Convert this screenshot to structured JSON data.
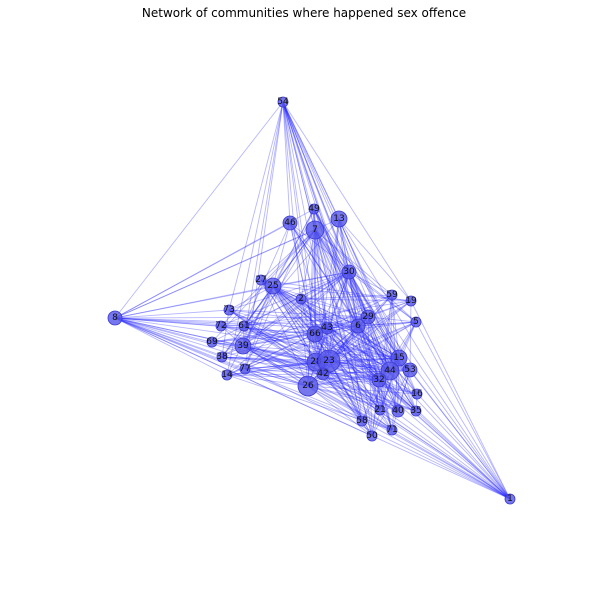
{
  "title": "Network of communities where happened sex offence",
  "colors": {
    "node": "#5555e8",
    "edge": "#2020ff"
  },
  "nodes": [
    {
      "id": "54"
    },
    {
      "id": "49"
    },
    {
      "id": "13"
    },
    {
      "id": "46"
    },
    {
      "id": "7"
    },
    {
      "id": "30"
    },
    {
      "id": "27"
    },
    {
      "id": "25"
    },
    {
      "id": "2"
    },
    {
      "id": "59"
    },
    {
      "id": "19"
    },
    {
      "id": "8"
    },
    {
      "id": "73"
    },
    {
      "id": "29"
    },
    {
      "id": "6"
    },
    {
      "id": "5"
    },
    {
      "id": "72"
    },
    {
      "id": "61"
    },
    {
      "id": "43"
    },
    {
      "id": "66"
    },
    {
      "id": "69"
    },
    {
      "id": "39"
    },
    {
      "id": "38"
    },
    {
      "id": "77"
    },
    {
      "id": "14"
    },
    {
      "id": "28"
    },
    {
      "id": "23"
    },
    {
      "id": "42"
    },
    {
      "id": "15"
    },
    {
      "id": "44"
    },
    {
      "id": "53"
    },
    {
      "id": "32"
    },
    {
      "id": "26"
    },
    {
      "id": "16"
    },
    {
      "id": "21"
    },
    {
      "id": "40"
    },
    {
      "id": "35"
    },
    {
      "id": "58"
    },
    {
      "id": "71"
    },
    {
      "id": "50"
    },
    {
      "id": "1"
    }
  ]
}
